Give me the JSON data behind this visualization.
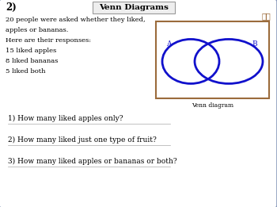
{
  "title": "Venn Diagrams",
  "question_number": "2)",
  "intro_lines": [
    "20 people were asked whether they liked,",
    "apples or bananas.",
    "Here are their responses:",
    "15 liked apples",
    "8 liked bananas",
    "5 liked both"
  ],
  "questions": [
    "1) How many liked apples only?",
    "2) How many liked just one type of fruit?",
    "3) How many liked apples or bananas or both?"
  ],
  "venn_label_a": "A",
  "venn_label_b": "B",
  "venn_caption": "Venn diagram",
  "corner_annotation": "ℓℓ",
  "bg_color": "#ffffff",
  "outer_border_color": "#8899bb",
  "title_box_edge": "#999999",
  "title_box_face": "#eeeeee",
  "venn_rect_color": "#9B6B3B",
  "venn_circle_color": "#1111cc",
  "text_color": "#000000",
  "q_line_color": "#aaaaaa",
  "title_fontsize": 7.5,
  "number_fontsize": 8.5,
  "body_fontsize": 6.0,
  "question_fontsize": 6.5,
  "caption_fontsize": 5.5,
  "label_fontsize": 6.5
}
